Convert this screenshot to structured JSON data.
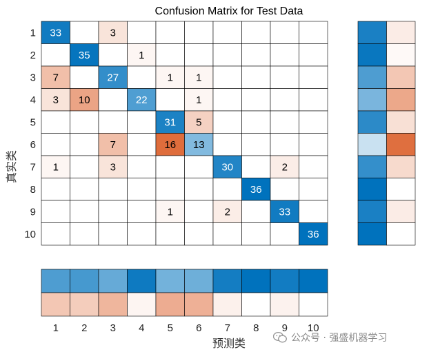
{
  "chart_data": {
    "type": "heatmap",
    "title": "Confusion Matrix for Test Data",
    "xlabel": "预测类",
    "ylabel": "真实类",
    "row_labels": [
      "1",
      "2",
      "3",
      "4",
      "5",
      "6",
      "7",
      "8",
      "9",
      "10"
    ],
    "col_labels": [
      "1",
      "2",
      "3",
      "4",
      "5",
      "6",
      "7",
      "8",
      "9",
      "10"
    ],
    "matrix": [
      [
        33,
        0,
        3,
        0,
        0,
        0,
        0,
        0,
        0,
        0
      ],
      [
        0,
        35,
        0,
        1,
        0,
        0,
        0,
        0,
        0,
        0
      ],
      [
        7,
        0,
        27,
        0,
        1,
        1,
        0,
        0,
        0,
        0
      ],
      [
        3,
        10,
        0,
        22,
        0,
        1,
        0,
        0,
        0,
        0
      ],
      [
        0,
        0,
        0,
        0,
        31,
        5,
        0,
        0,
        0,
        0
      ],
      [
        0,
        0,
        7,
        0,
        16,
        13,
        0,
        0,
        0,
        0
      ],
      [
        1,
        0,
        3,
        0,
        0,
        0,
        30,
        0,
        2,
        0
      ],
      [
        0,
        0,
        0,
        0,
        0,
        0,
        0,
        36,
        0,
        0
      ],
      [
        0,
        0,
        0,
        0,
        1,
        0,
        2,
        0,
        33,
        0
      ],
      [
        0,
        0,
        0,
        0,
        0,
        0,
        0,
        0,
        0,
        36
      ]
    ],
    "grid": true,
    "row_summary": "true-class correct / incorrect fractions (colour only)",
    "column_summary": "predicted-class correct / incorrect fractions (colour only)",
    "colors": {
      "correct_max": "#0072BD",
      "correct_min": "#ffffff",
      "incorrect_max": "#D95319",
      "incorrect_min": "#ffffff",
      "grid": "#000000",
      "text_dark": "#000000",
      "text_light": "#ffffff"
    }
  },
  "watermark": {
    "text": "公众号 · 强盛机器学习",
    "icon": "wechat-icon"
  }
}
